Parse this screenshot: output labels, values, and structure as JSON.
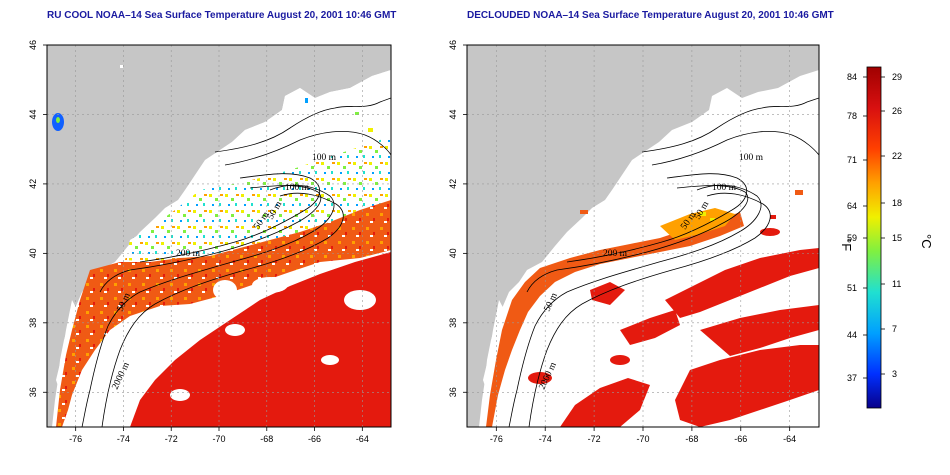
{
  "panels": [
    {
      "id": "left",
      "title": "RU COOL NOAA–14 Sea Surface Temperature August 20, 2001 10:46 GMT",
      "contour_labels": [
        "100 m",
        "100 m",
        "50 m",
        "50 m",
        "200 m",
        "2000 m",
        "50 m"
      ]
    },
    {
      "id": "right",
      "title": "DECLOUDED NOAA–14 Sea Surface Temperature August 20, 2001 10:46 GMT",
      "contour_labels": [
        "100 m",
        "100 m",
        "50 m",
        "50 m",
        "200 m",
        "2000 m",
        "50 m"
      ]
    }
  ],
  "map_axes": {
    "lon_ticks": [
      "-76",
      "-74",
      "-72",
      "-70",
      "-68",
      "-66",
      "-64"
    ],
    "lat_ticks": [
      "46",
      "44",
      "42",
      "40",
      "38",
      "36"
    ],
    "lon_range": [
      -77.2,
      -62.8
    ],
    "lat_range": [
      35.0,
      46.0
    ]
  },
  "colorbar": {
    "fahrenheit_ticks": [
      "84",
      "78",
      "71",
      "64",
      "59",
      "51",
      "44",
      "37"
    ],
    "celsius_ticks": [
      "29",
      "26",
      "22",
      "18",
      "15",
      "11",
      "7",
      "3"
    ],
    "fahrenheit_unit": "°F",
    "celsius_unit": "°C",
    "colors": [
      "#08008a",
      "#0030ff",
      "#00a0ff",
      "#20e0d0",
      "#80f040",
      "#f0f000",
      "#ffa000",
      "#ff4000",
      "#d81010",
      "#a00000"
    ]
  },
  "colors": {
    "land": "#c6c6c6",
    "ocean_no_data": "#ffffff",
    "warm_sst": "#e41a0e",
    "mid_sst": "#f05a14"
  }
}
